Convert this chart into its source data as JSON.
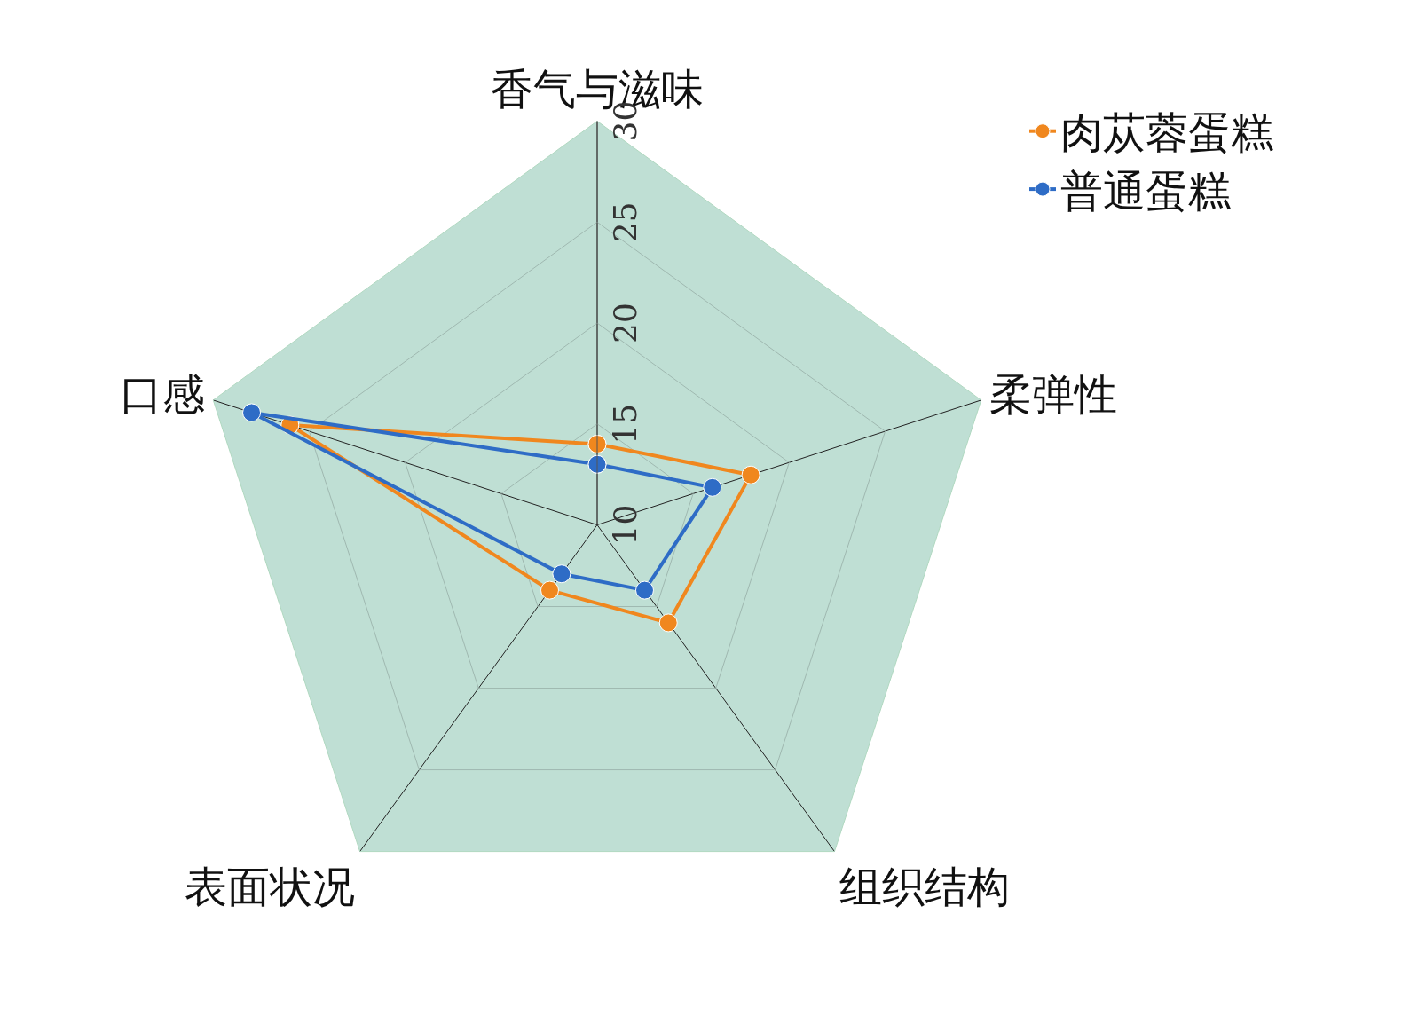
{
  "chart_data": {
    "type": "radar",
    "categories": [
      "香气与滋味",
      "柔弹性",
      "组织结构",
      "表面状况",
      "口感"
    ],
    "series": [
      {
        "name": "肉苁蓉蛋糕",
        "color": "#f0871e",
        "values": [
          14,
          18,
          16,
          14,
          26
        ]
      },
      {
        "name": "普通蛋糕",
        "color": "#2e6cc6",
        "values": [
          13,
          16,
          14,
          13,
          28
        ]
      }
    ],
    "ylim": [
      10,
      30
    ],
    "yticks": [
      10,
      15,
      20,
      25,
      30
    ],
    "grid": true,
    "legend": "top right",
    "marker": "circle",
    "line_style": "solid"
  }
}
